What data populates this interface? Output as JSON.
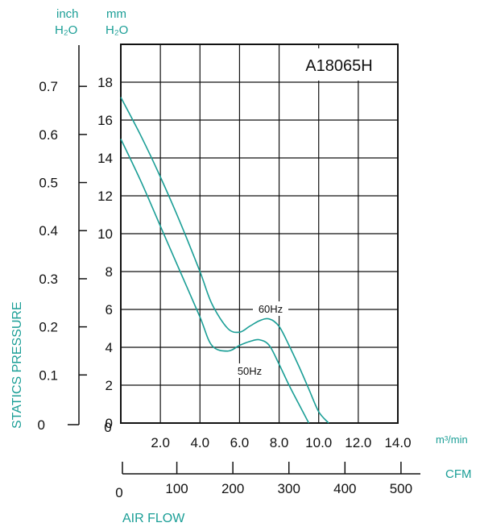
{
  "chart_data": {
    "type": "line",
    "model_label": "A18065H",
    "units": {
      "inch_label_top": "inch",
      "inch_label_bottom": "H₂O",
      "mm_label_top": "mm",
      "mm_label_bottom": "H₂O",
      "m3_label": "m³/min",
      "cfm_label": "CFM"
    },
    "ylabel": "STATICS PRESSURE",
    "xlabel": "AIR FLOW",
    "y_mm_ticks": [
      "0",
      "2",
      "4",
      "6",
      "8",
      "10",
      "12",
      "14",
      "16",
      "18"
    ],
    "y_inch_ticks": [
      "0",
      "0.1",
      "0.2",
      "0.3",
      "0.4",
      "0.5",
      "0.6",
      "0.7"
    ],
    "x_m3_ticks": [
      "2.0",
      "4.0",
      "6.0",
      "8.0",
      "10.0",
      "12.0",
      "14.0"
    ],
    "x_cfm_ticks": [
      "0",
      "100",
      "200",
      "300",
      "400",
      "500"
    ],
    "xlim_m3": [
      0,
      14
    ],
    "ylim_mm": [
      0,
      20
    ],
    "grid": true,
    "series": [
      {
        "name": "60Hz",
        "color": "#1a9e96",
        "x": [
          0,
          1,
          2,
          3,
          4,
          4.6,
          5.4,
          6.0,
          6.5,
          7.0,
          7.5,
          8.0,
          8.5,
          9.0,
          9.5,
          10.0,
          10.5
        ],
        "y": [
          17.2,
          15.2,
          13.0,
          10.6,
          8.0,
          6.3,
          5.0,
          4.8,
          5.1,
          5.4,
          5.5,
          5.1,
          4.1,
          3.0,
          1.8,
          0.6,
          0.0
        ]
      },
      {
        "name": "50Hz",
        "color": "#1a9e96",
        "x": [
          0,
          1,
          2,
          3,
          4,
          4.6,
          5.4,
          6.0,
          6.5,
          7.0,
          7.5,
          8.0,
          8.5,
          9.0,
          9.5
        ],
        "y": [
          15.0,
          12.8,
          10.4,
          8.0,
          5.6,
          4.1,
          3.8,
          4.1,
          4.3,
          4.4,
          4.1,
          3.1,
          2.0,
          1.0,
          0.0
        ]
      }
    ]
  }
}
